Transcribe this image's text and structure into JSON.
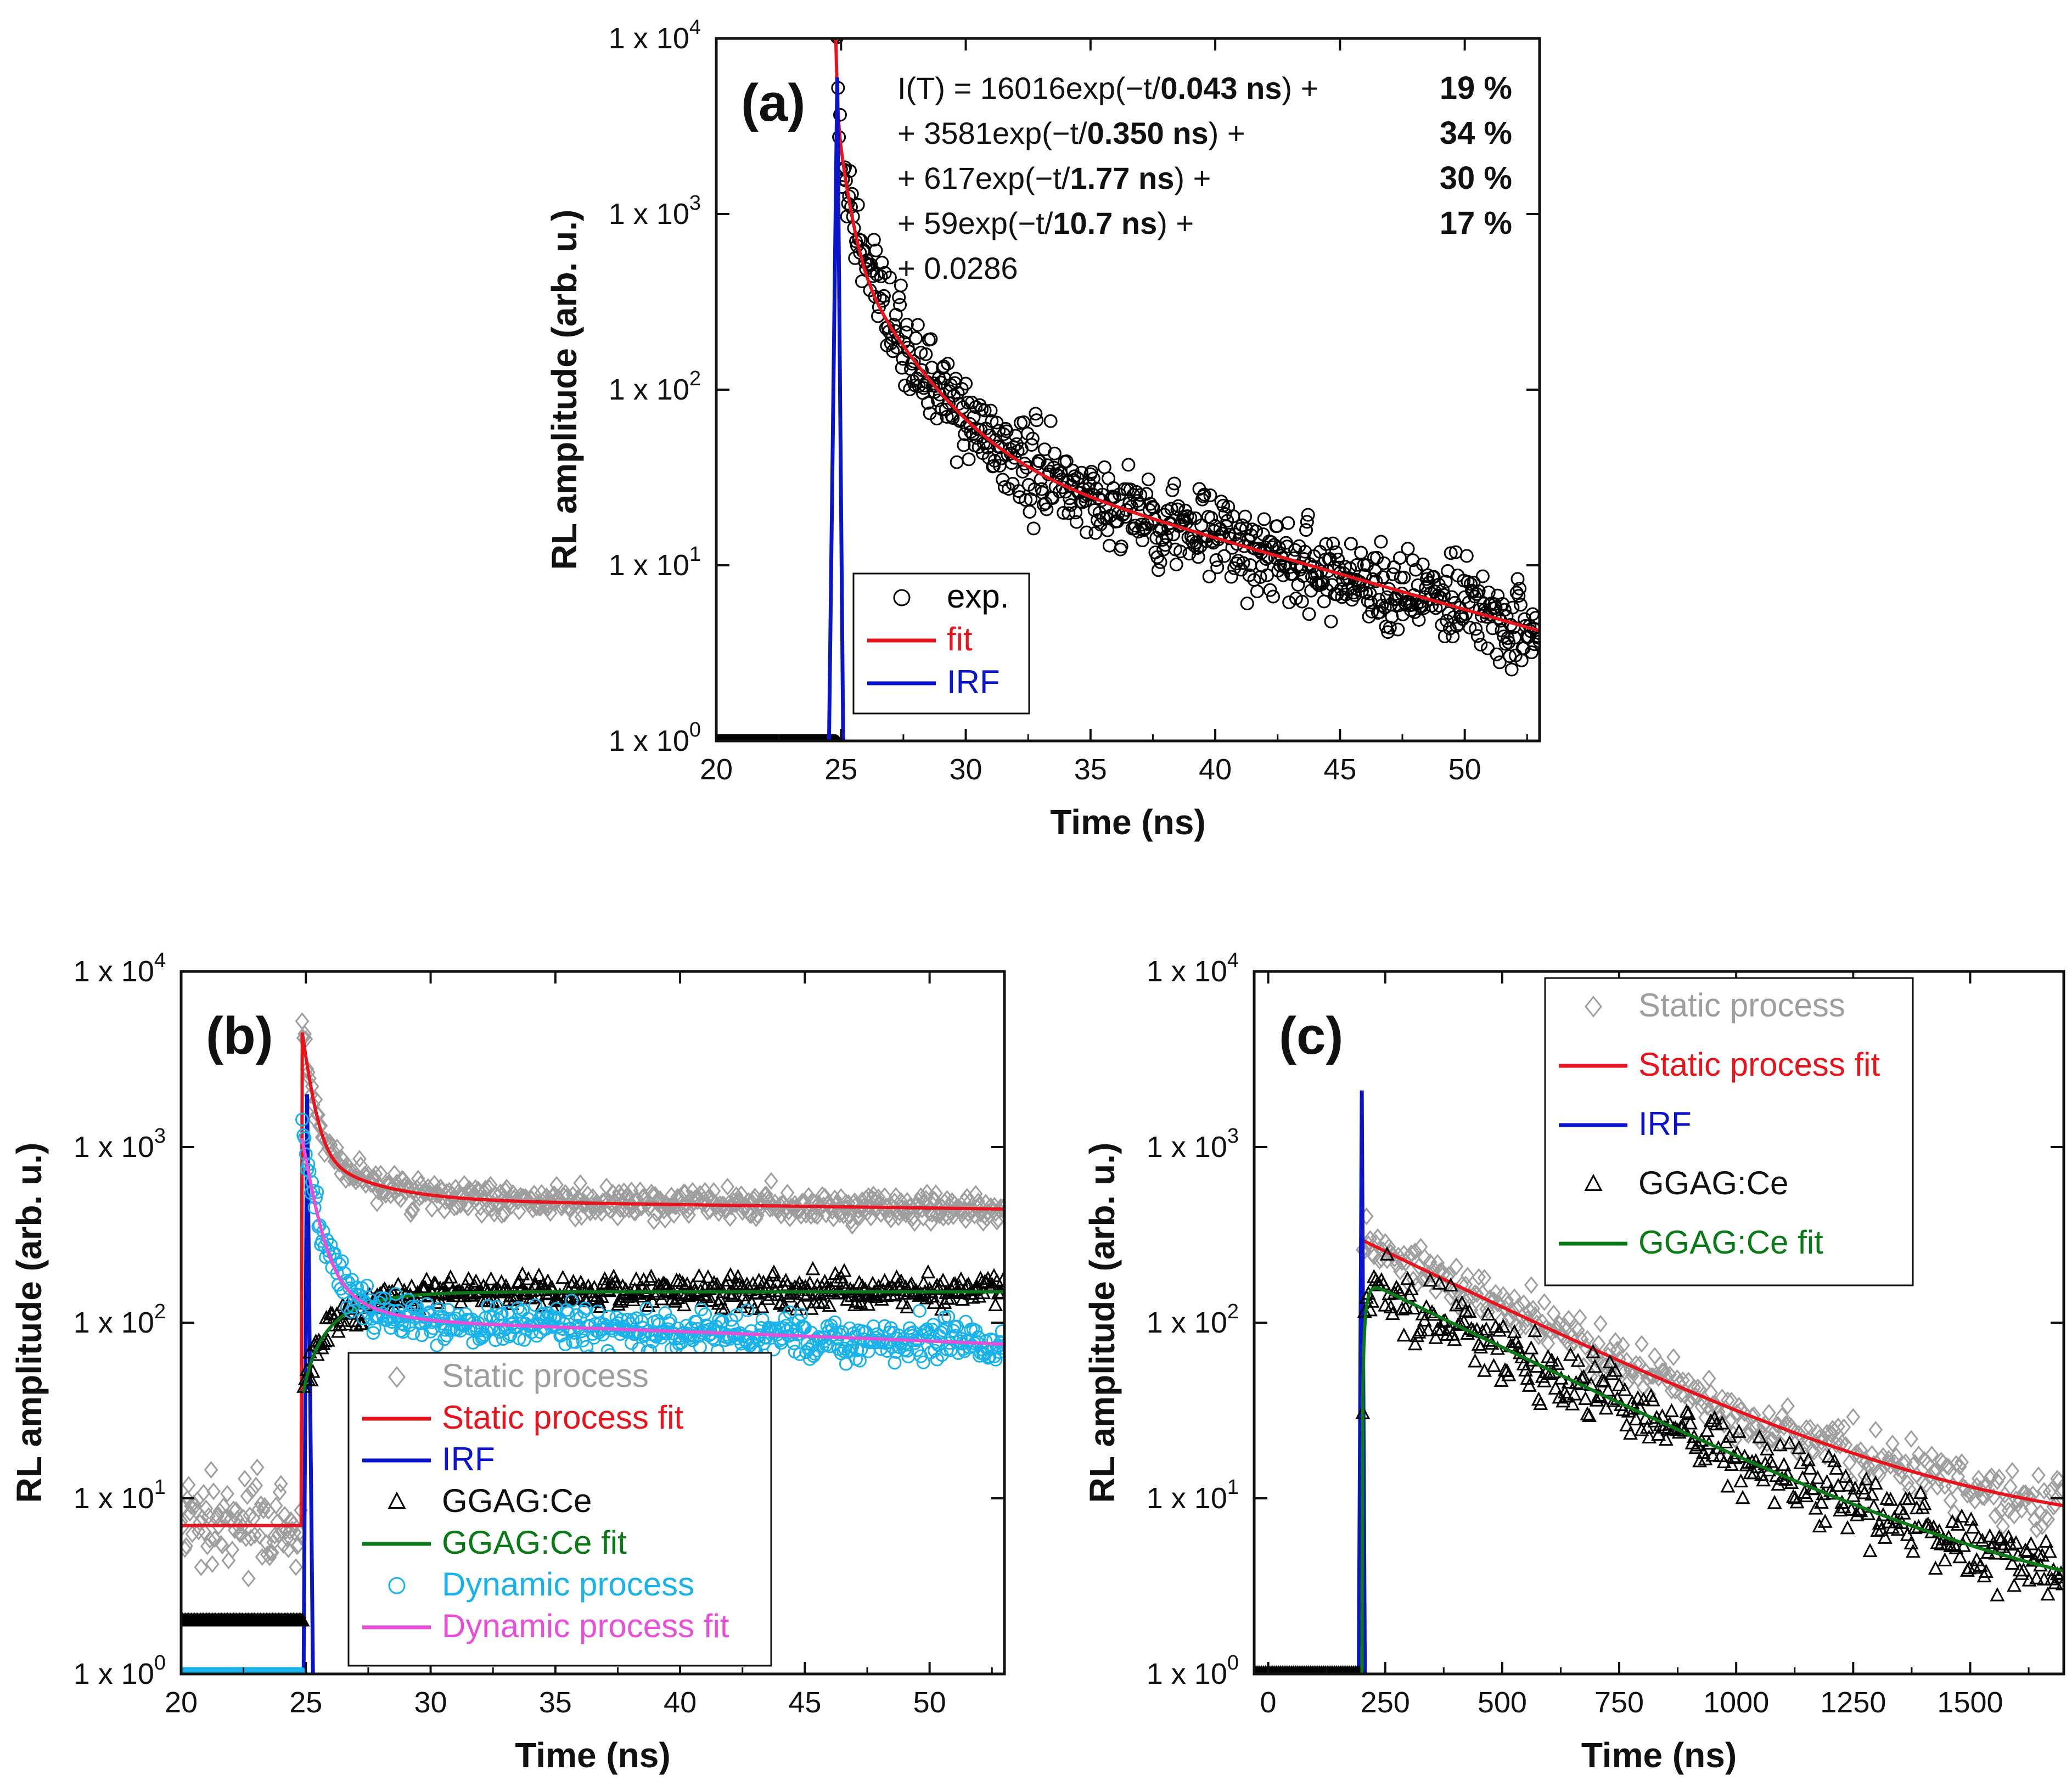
{
  "colors": {
    "exp": "#000000",
    "fit": "#e8141d",
    "irf": "#0a14c8",
    "static": "#9e9e9e",
    "ggag": "#000000",
    "ggag_fit": "#0a7a16",
    "dynamic": "#19b2ea",
    "dynamic_fit": "#e64fd6"
  },
  "chart_data": [
    {
      "id": "a",
      "type": "scatter",
      "panel_label": "(a)",
      "xlabel": "Time (ns)",
      "ylabel": "RL amplitude (arb. u.)",
      "yscale": "log",
      "xlim": [
        20,
        53
      ],
      "ylim": [
        1,
        10000
      ],
      "xticks": [
        20,
        25,
        30,
        35,
        40,
        45,
        50
      ],
      "yticks": [
        {
          "base": "1 x 10",
          "exp": "0"
        },
        {
          "base": "1 x 10",
          "exp": "1"
        },
        {
          "base": "1 x 10",
          "exp": "2"
        },
        {
          "base": "1 x 10",
          "exp": "3"
        },
        {
          "base": "1 x 10",
          "exp": "4"
        }
      ],
      "legend": {
        "position": "bottom-left",
        "entries": [
          {
            "label": "exp.",
            "marker": "circle",
            "color_key": "exp"
          },
          {
            "label": "fit",
            "marker": "line",
            "color_key": "fit"
          },
          {
            "label": "IRF",
            "marker": "line",
            "color_key": "irf"
          }
        ]
      },
      "equation": {
        "lines": [
          {
            "pre": "I(T) = 16016exp(−t/",
            "bold": "0.043 ns",
            "post": ") +",
            "pct": "19 %"
          },
          {
            "pre": "+ 3581exp(−t/",
            "bold": "0.350 ns",
            "post": ") +",
            "pct": "34 %"
          },
          {
            "pre": "+ 617exp(−t/",
            "bold": "1.77 ns",
            "post": ") +",
            "pct": "30 %"
          },
          {
            "pre": "+ 59exp(−t/",
            "bold": "10.7 ns",
            "post": ") +",
            "pct": "17 %"
          },
          {
            "pre": "+ 0.0286",
            "bold": "",
            "post": "",
            "pct": ""
          }
        ]
      },
      "series": [
        {
          "name": "exp.",
          "kind": "scatter",
          "marker": "circle",
          "color_key": "exp",
          "model": {
            "t0": 24.75,
            "amps": [
              16016,
              3581,
              617,
              59
            ],
            "taus": [
              0.043,
              0.35,
              1.77,
              10.7
            ],
            "offset": 0.0286,
            "noise": 0.22,
            "step": 0.04,
            "pre_level": 1
          }
        },
        {
          "name": "fit",
          "kind": "line",
          "color_key": "fit",
          "model": {
            "t0": 24.75,
            "amps": [
              16016,
              3581,
              617,
              59
            ],
            "taus": [
              0.043,
              0.35,
              1.77,
              10.7
            ],
            "offset": 0.0286
          }
        },
        {
          "name": "IRF",
          "kind": "pulse",
          "color_key": "irf",
          "x": [
            24.5,
            24.85,
            25.1
          ],
          "peak": 6000
        }
      ]
    },
    {
      "id": "b",
      "type": "scatter",
      "panel_label": "(b)",
      "xlabel": "Time (ns)",
      "ylabel": "RL amplitude (arb. u.)",
      "yscale": "log",
      "xlim": [
        20,
        53
      ],
      "ylim": [
        1,
        10000
      ],
      "xticks": [
        20,
        25,
        30,
        35,
        40,
        45,
        50
      ],
      "yticks": [
        {
          "base": "1 x 10",
          "exp": "0"
        },
        {
          "base": "1 x 10",
          "exp": "1"
        },
        {
          "base": "1 x 10",
          "exp": "2"
        },
        {
          "base": "1 x 10",
          "exp": "3"
        },
        {
          "base": "1 x 10",
          "exp": "4"
        }
      ],
      "legend": {
        "position": "bottom-center",
        "entries": [
          {
            "label": "Static process",
            "marker": "diamond",
            "color_key": "static"
          },
          {
            "label": "Static process fit",
            "marker": "line",
            "color_key": "fit"
          },
          {
            "label": "IRF",
            "marker": "line",
            "color_key": "irf"
          },
          {
            "label": "GGAG:Ce",
            "marker": "triangle",
            "color_key": "ggag"
          },
          {
            "label": "GGAG:Ce fit",
            "marker": "line",
            "color_key": "ggag_fit"
          },
          {
            "label": "Dynamic process",
            "marker": "circle",
            "color_key": "dynamic"
          },
          {
            "label": "Dynamic process fit",
            "marker": "line",
            "color_key": "dynamic_fit"
          }
        ]
      },
      "series": [
        {
          "name": "Static process",
          "kind": "scatter",
          "marker": "diamond",
          "color_key": "static",
          "model": {
            "t0": 24.85,
            "amps": [
              3600,
              450
            ],
            "taus": [
              0.35,
              2.2
            ],
            "plateau": 500,
            "slope": -0.004,
            "noise": 0.07,
            "step": 0.05,
            "pre_level": 7,
            "pre_noise": 0.25
          }
        },
        {
          "name": "Static process fit",
          "kind": "line",
          "color_key": "fit",
          "model": {
            "t0": 24.85,
            "amps": [
              3600,
              450
            ],
            "taus": [
              0.35,
              2.2
            ],
            "plateau": 500,
            "slope": -0.004,
            "pre_level": 7
          }
        },
        {
          "name": "IRF",
          "kind": "pulse",
          "color_key": "irf",
          "x": [
            24.9,
            25.05,
            25.3
          ],
          "peak": 2000
        },
        {
          "name": "GGAG:Ce",
          "kind": "scatter",
          "marker": "triangle",
          "color_key": "ggag",
          "model": {
            "t0": 24.9,
            "rise": 1.6,
            "plateau": 150,
            "start": 40,
            "noise": 0.08,
            "step": 0.06,
            "pre_level": 2
          }
        },
        {
          "name": "GGAG:Ce fit",
          "kind": "line",
          "color_key": "ggag_fit",
          "model": {
            "t0": 24.9,
            "rise": 1.6,
            "plateau": 150,
            "start": 40
          }
        },
        {
          "name": "Dynamic process",
          "kind": "scatter",
          "marker": "circle",
          "color_key": "dynamic",
          "model": {
            "t0": 24.85,
            "amps": [
              900,
              120
            ],
            "taus": [
              0.45,
              1.5
            ],
            "plateau": 105,
            "slope": -0.01,
            "noise": 0.1,
            "step": 0.05,
            "pre_level": 1
          }
        },
        {
          "name": "Dynamic process fit",
          "kind": "line",
          "color_key": "dynamic_fit",
          "model": {
            "t0": 24.85,
            "amps": [
              900,
              120
            ],
            "taus": [
              0.45,
              1.5
            ],
            "plateau": 105,
            "slope": -0.01
          }
        }
      ]
    },
    {
      "id": "c",
      "type": "scatter",
      "panel_label": "(c)",
      "xlabel": "Time (ns)",
      "ylabel": "RL amplitude (arb. u.)",
      "yscale": "log",
      "xlim": [
        -30,
        1700
      ],
      "ylim": [
        1,
        10000
      ],
      "xticks": [
        0,
        250,
        500,
        750,
        1000,
        1250,
        1500
      ],
      "yticks": [
        {
          "base": "1 x 10",
          "exp": "0"
        },
        {
          "base": "1 x 10",
          "exp": "1"
        },
        {
          "base": "1 x 10",
          "exp": "2"
        },
        {
          "base": "1 x 10",
          "exp": "3"
        },
        {
          "base": "1 x 10",
          "exp": "4"
        }
      ],
      "legend": {
        "position": "top-center",
        "entries": [
          {
            "label": "Static process",
            "marker": "diamond",
            "color_key": "static"
          },
          {
            "label": "Static process fit",
            "marker": "line",
            "color_key": "fit"
          },
          {
            "label": "IRF",
            "marker": "line",
            "color_key": "irf"
          },
          {
            "label": "GGAG:Ce",
            "marker": "triangle",
            "color_key": "ggag"
          },
          {
            "label": "GGAG:Ce fit",
            "marker": "line",
            "color_key": "ggag_fit"
          }
        ]
      },
      "series": [
        {
          "name": "Static process",
          "kind": "scatter",
          "marker": "diamond",
          "color_key": "static",
          "model": {
            "t0": 200,
            "amps": [
              290
            ],
            "taus": [
              330
            ],
            "offset": 6,
            "noise": 0.12,
            "step": 4,
            "pre_level": 1
          }
        },
        {
          "name": "Static process fit",
          "kind": "line",
          "color_key": "fit",
          "model": {
            "t0": 200,
            "amps": [
              290
            ],
            "taus": [
              330
            ],
            "offset": 6
          }
        },
        {
          "name": "IRF",
          "kind": "pulse",
          "color_key": "irf",
          "x": [
            193,
            200,
            207
          ],
          "peak": 2100
        },
        {
          "name": "GGAG:Ce",
          "kind": "scatter",
          "marker": "triangle",
          "color_key": "ggag",
          "model": {
            "t0": 200,
            "amps": [
              175
            ],
            "taus": [
              330
            ],
            "offset": 2,
            "rise": 8,
            "noise": 0.18,
            "step": 4,
            "pre_level": 1
          }
        },
        {
          "name": "GGAG:Ce fit",
          "kind": "line",
          "color_key": "ggag_fit",
          "model": {
            "t0": 200,
            "amps": [
              175
            ],
            "taus": [
              330
            ],
            "offset": 2,
            "rise": 8
          }
        }
      ]
    }
  ]
}
